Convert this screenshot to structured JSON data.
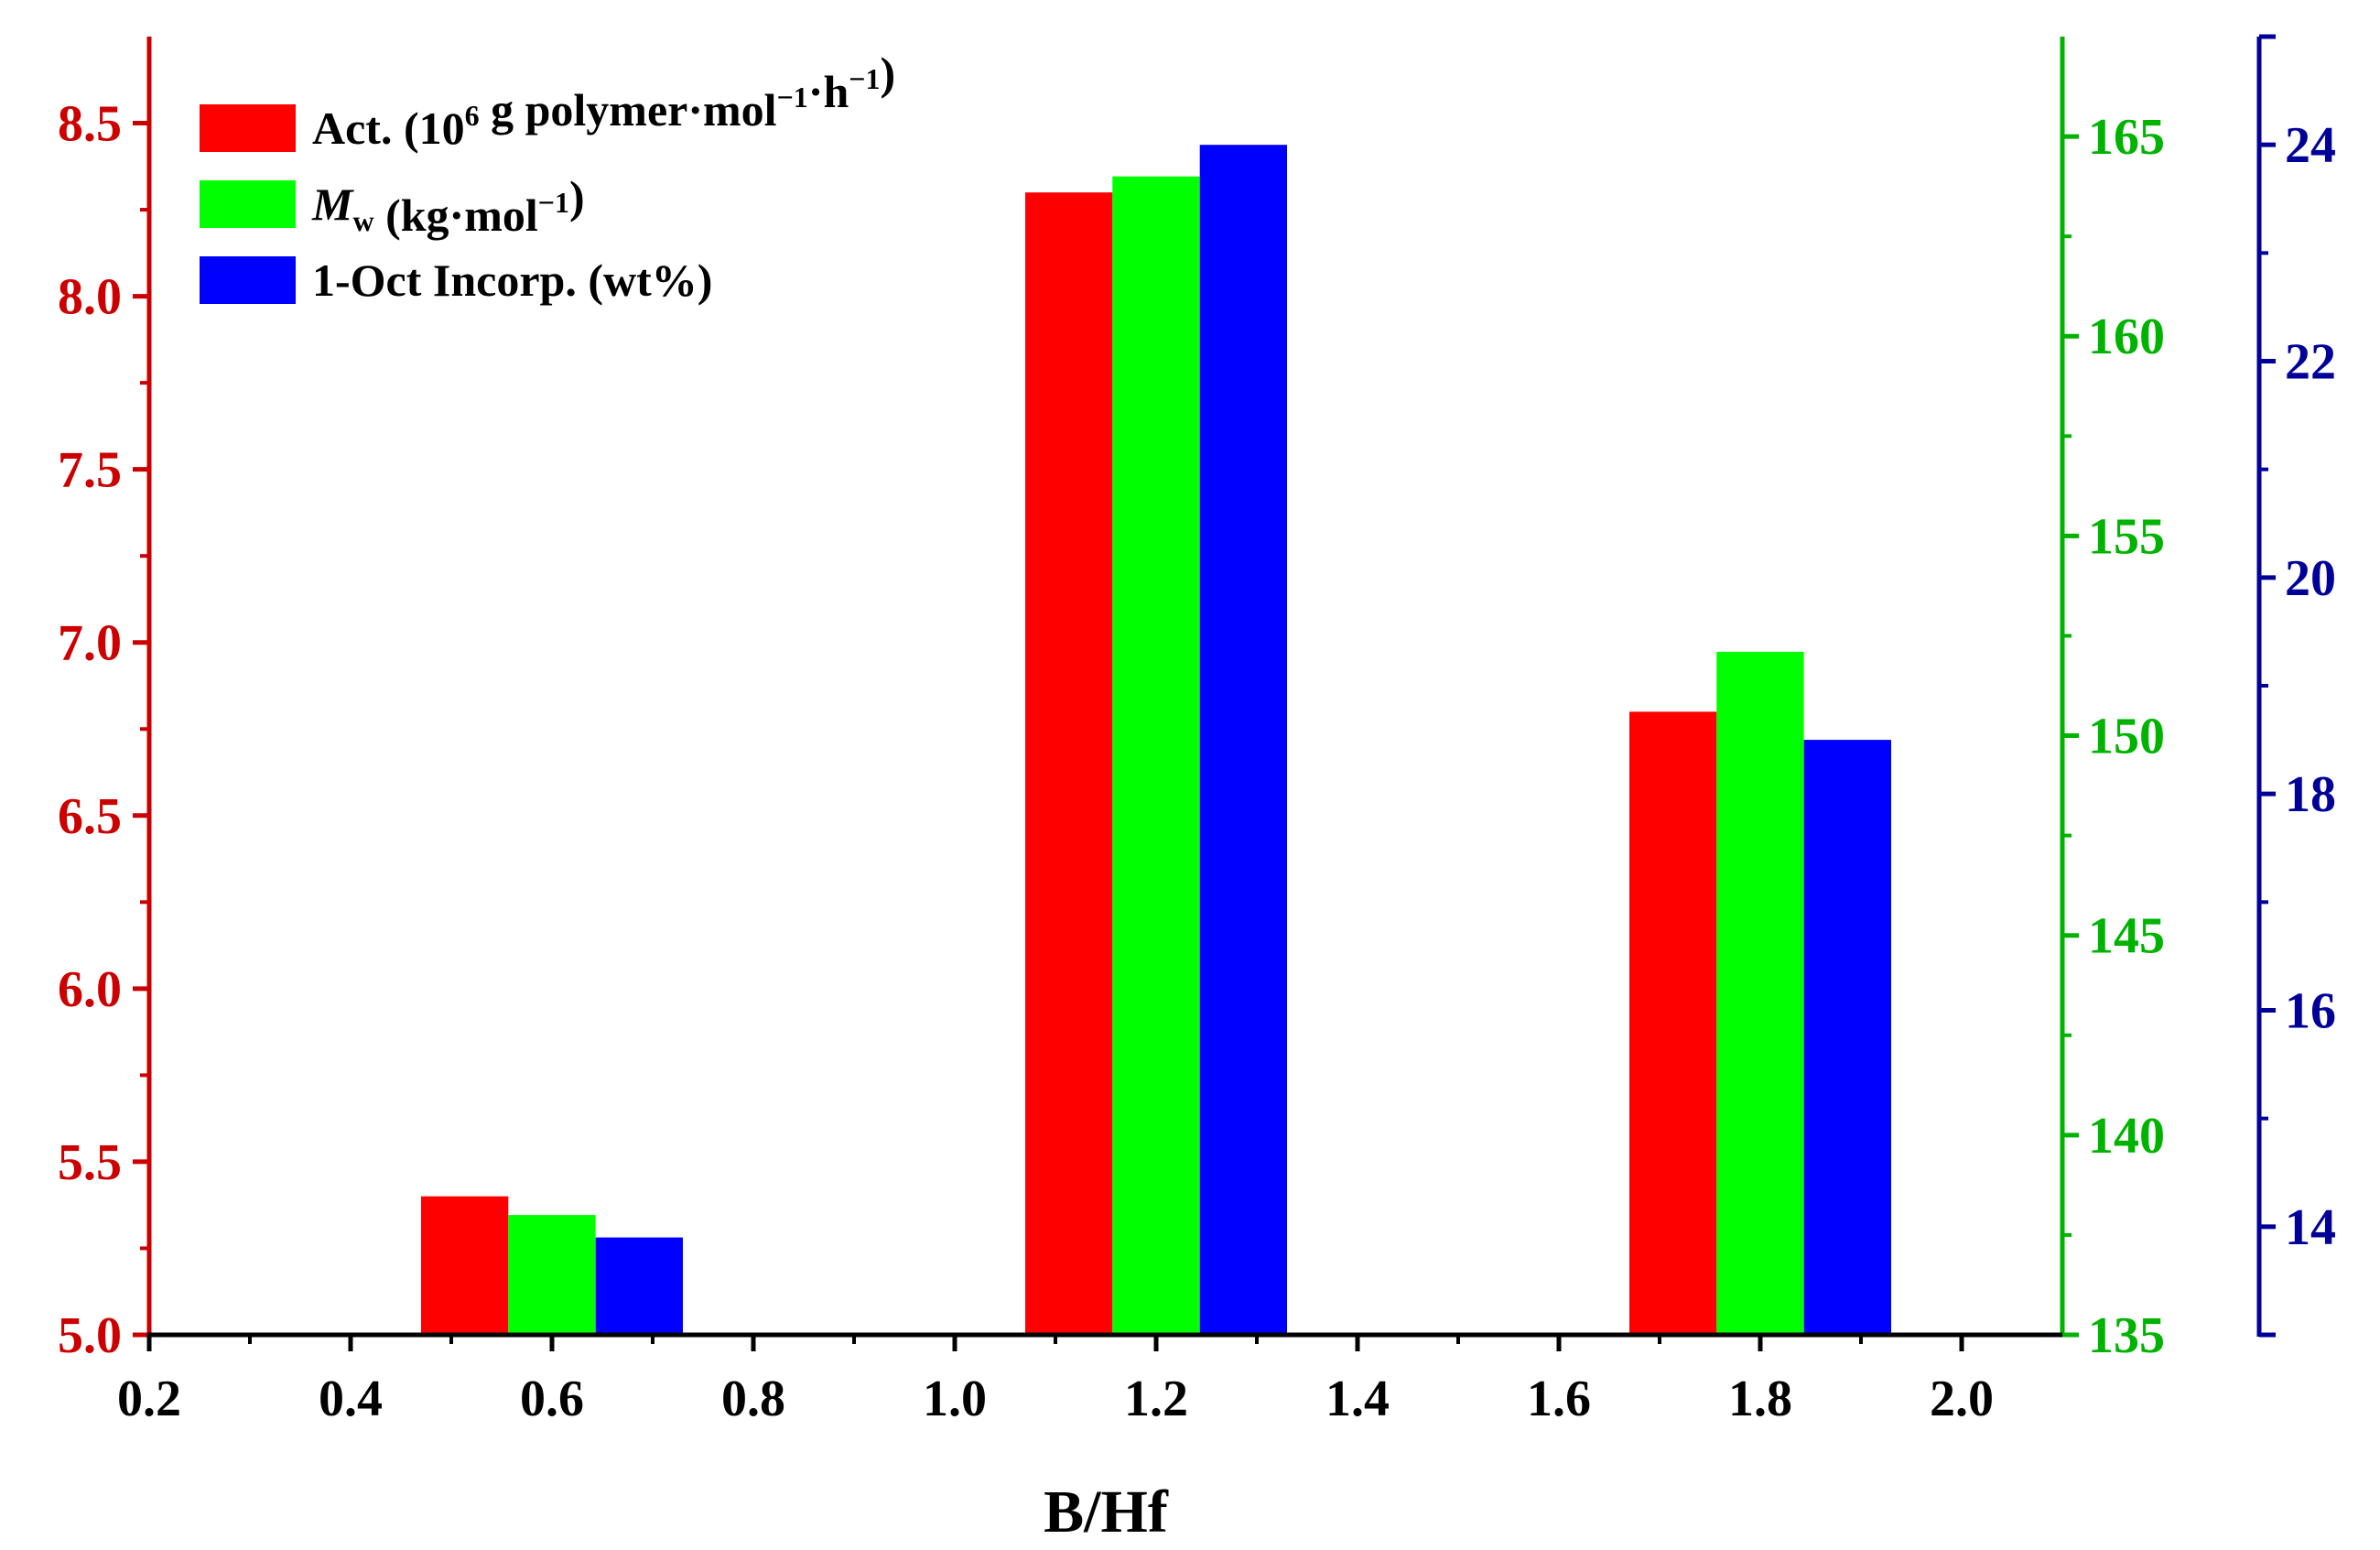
{
  "chart_data": {
    "type": "bar",
    "xlabel": "B/Hf",
    "xlim": [
      0.2,
      2.1
    ],
    "x_ticks": [
      "0.2",
      "0.4",
      "0.6",
      "0.8",
      "1.0",
      "1.2",
      "1.4",
      "1.6",
      "1.8",
      "2.0"
    ],
    "categories": [
      "0.6",
      "1.2",
      "1.8"
    ],
    "series": [
      {
        "name": "Act. (10^6 g polymer·mol^-1·h^-1)",
        "axis": "left",
        "color": "#ff0000",
        "values": [
          5.4,
          8.3,
          6.8
        ]
      },
      {
        "name": "Mw (kg·mol^-1)",
        "axis": "middle",
        "color": "#00ff00",
        "values": [
          138.0,
          164.0,
          152.1
        ]
      },
      {
        "name": "1-Oct Incorp. (wt%)",
        "axis": "right",
        "color": "#0000ff",
        "values": [
          13.9,
          24.0,
          18.5
        ]
      }
    ],
    "y_axes": [
      {
        "id": "left",
        "color": "#cc0000",
        "ylim": [
          5.0,
          8.75
        ],
        "ticks": [
          "5.0",
          "5.5",
          "6.0",
          "6.5",
          "7.0",
          "7.5",
          "8.0",
          "8.5"
        ]
      },
      {
        "id": "middle",
        "color": "#00b300",
        "ylim": [
          135,
          167.5
        ],
        "ticks": [
          "135",
          "140",
          "145",
          "150",
          "155",
          "160",
          "165"
        ]
      },
      {
        "id": "right",
        "color": "#000099",
        "ylim": [
          13,
          25
        ],
        "ticks": [
          "14",
          "16",
          "18",
          "20",
          "22",
          "24"
        ]
      }
    ],
    "legend": {
      "position": "top-left",
      "entries": [
        {
          "color": "#ff0000",
          "parts": [
            "Act. (10",
            "6",
            " g polymer·mol",
            "−1",
            "·h",
            "−1",
            ")"
          ]
        },
        {
          "color": "#00ff00",
          "parts": [
            "M",
            "w",
            " (kg·mol",
            "−1",
            ")"
          ]
        },
        {
          "color": "#0000ff",
          "parts": [
            "1-Oct Incorp. (wt%)"
          ]
        }
      ]
    }
  }
}
